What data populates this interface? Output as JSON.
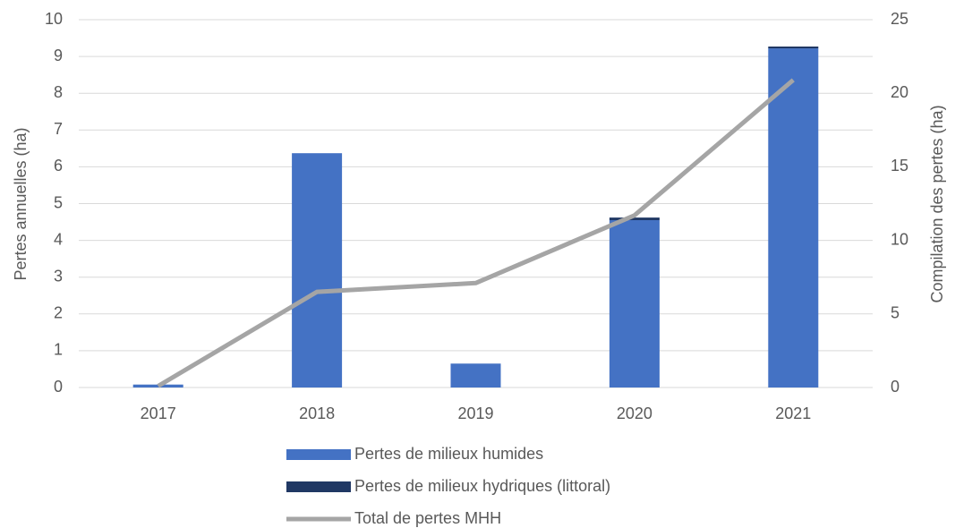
{
  "chart_data": {
    "type": "bar",
    "stacked": true,
    "categories": [
      "2017",
      "2018",
      "2019",
      "2020",
      "2021"
    ],
    "series": [
      {
        "name": "Pertes de milieux humides",
        "color": "#4472c4",
        "values": [
          0.08,
          6.37,
          0.65,
          4.55,
          9.22
        ]
      },
      {
        "name": "Pertes de milieux hydriques (littoral)",
        "color": "#203864",
        "values": [
          0,
          0,
          0,
          0.07,
          0.05
        ]
      },
      {
        "name": "Total de pertes MHH",
        "color": "#a5a5a5",
        "type": "line",
        "axis": "y2",
        "values": [
          0.1,
          6.5,
          7.1,
          11.7,
          20.9
        ]
      }
    ],
    "ylabel": "Pertes annuelles (ha)",
    "y2label": "Compilation des pertes (ha)",
    "ylim": [
      0,
      10
    ],
    "yticks": [
      0,
      1,
      2,
      3,
      4,
      5,
      6,
      7,
      8,
      9,
      10
    ],
    "y2lim": [
      0,
      25
    ],
    "y2ticks": [
      0,
      5,
      10,
      15,
      20,
      25
    ],
    "grid": true,
    "legend": "bottom"
  }
}
